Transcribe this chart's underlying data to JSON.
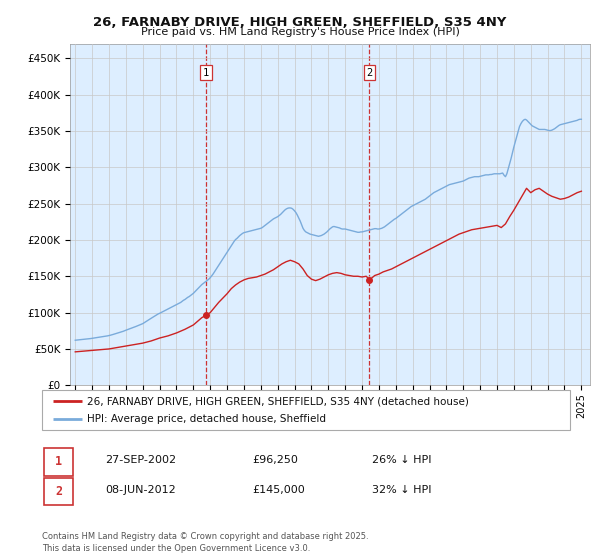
{
  "title": "26, FARNABY DRIVE, HIGH GREEN, SHEFFIELD, S35 4NY",
  "subtitle": "Price paid vs. HM Land Registry's House Price Index (HPI)",
  "ytick_values": [
    0,
    50000,
    100000,
    150000,
    200000,
    250000,
    300000,
    350000,
    400000,
    450000
  ],
  "ylim": [
    0,
    470000
  ],
  "xlim_start": 1994.7,
  "xlim_end": 2025.5,
  "hpi_color": "#7aabdb",
  "property_color": "#cc2222",
  "dashed_line_color": "#cc3333",
  "background_color": "#ddeeff",
  "legend_label_property": "26, FARNABY DRIVE, HIGH GREEN, SHEFFIELD, S35 4NY (detached house)",
  "legend_label_hpi": "HPI: Average price, detached house, Sheffield",
  "transaction1_date": "27-SEP-2002",
  "transaction1_price": "£96,250",
  "transaction1_hpi_diff": "26% ↓ HPI",
  "transaction1_x": 2002.74,
  "transaction2_date": "08-JUN-2012",
  "transaction2_price": "£145,000",
  "transaction2_hpi_diff": "32% ↓ HPI",
  "transaction2_x": 2012.44,
  "footer_text": "Contains HM Land Registry data © Crown copyright and database right 2025.\nThis data is licensed under the Open Government Licence v3.0.",
  "hpi_data_x": [
    1995.0,
    1995.083,
    1995.167,
    1995.25,
    1995.333,
    1995.417,
    1995.5,
    1995.583,
    1995.667,
    1995.75,
    1995.833,
    1995.917,
    1996.0,
    1996.083,
    1996.167,
    1996.25,
    1996.333,
    1996.417,
    1996.5,
    1996.583,
    1996.667,
    1996.75,
    1996.833,
    1996.917,
    1997.0,
    1997.083,
    1997.167,
    1997.25,
    1997.333,
    1997.417,
    1997.5,
    1997.583,
    1997.667,
    1997.75,
    1997.833,
    1997.917,
    1998.0,
    1998.083,
    1998.167,
    1998.25,
    1998.333,
    1998.417,
    1998.5,
    1998.583,
    1998.667,
    1998.75,
    1998.833,
    1998.917,
    1999.0,
    1999.083,
    1999.167,
    1999.25,
    1999.333,
    1999.417,
    1999.5,
    1999.583,
    1999.667,
    1999.75,
    1999.833,
    1999.917,
    2000.0,
    2000.083,
    2000.167,
    2000.25,
    2000.333,
    2000.417,
    2000.5,
    2000.583,
    2000.667,
    2000.75,
    2000.833,
    2000.917,
    2001.0,
    2001.083,
    2001.167,
    2001.25,
    2001.333,
    2001.417,
    2001.5,
    2001.583,
    2001.667,
    2001.75,
    2001.833,
    2001.917,
    2002.0,
    2002.083,
    2002.167,
    2002.25,
    2002.333,
    2002.417,
    2002.5,
    2002.583,
    2002.667,
    2002.75,
    2002.833,
    2002.917,
    2003.0,
    2003.083,
    2003.167,
    2003.25,
    2003.333,
    2003.417,
    2003.5,
    2003.583,
    2003.667,
    2003.75,
    2003.833,
    2003.917,
    2004.0,
    2004.083,
    2004.167,
    2004.25,
    2004.333,
    2004.417,
    2004.5,
    2004.583,
    2004.667,
    2004.75,
    2004.833,
    2004.917,
    2005.0,
    2005.083,
    2005.167,
    2005.25,
    2005.333,
    2005.417,
    2005.5,
    2005.583,
    2005.667,
    2005.75,
    2005.833,
    2005.917,
    2006.0,
    2006.083,
    2006.167,
    2006.25,
    2006.333,
    2006.417,
    2006.5,
    2006.583,
    2006.667,
    2006.75,
    2006.833,
    2006.917,
    2007.0,
    2007.083,
    2007.167,
    2007.25,
    2007.333,
    2007.417,
    2007.5,
    2007.583,
    2007.667,
    2007.75,
    2007.833,
    2007.917,
    2008.0,
    2008.083,
    2008.167,
    2008.25,
    2008.333,
    2008.417,
    2008.5,
    2008.583,
    2008.667,
    2008.75,
    2008.833,
    2008.917,
    2009.0,
    2009.083,
    2009.167,
    2009.25,
    2009.333,
    2009.417,
    2009.5,
    2009.583,
    2009.667,
    2009.75,
    2009.833,
    2009.917,
    2010.0,
    2010.083,
    2010.167,
    2010.25,
    2010.333,
    2010.417,
    2010.5,
    2010.583,
    2010.667,
    2010.75,
    2010.833,
    2010.917,
    2011.0,
    2011.083,
    2011.167,
    2011.25,
    2011.333,
    2011.417,
    2011.5,
    2011.583,
    2011.667,
    2011.75,
    2011.833,
    2011.917,
    2012.0,
    2012.083,
    2012.167,
    2012.25,
    2012.333,
    2012.417,
    2012.5,
    2012.583,
    2012.667,
    2012.75,
    2012.833,
    2012.917,
    2013.0,
    2013.083,
    2013.167,
    2013.25,
    2013.333,
    2013.417,
    2013.5,
    2013.583,
    2013.667,
    2013.75,
    2013.833,
    2013.917,
    2014.0,
    2014.083,
    2014.167,
    2014.25,
    2014.333,
    2014.417,
    2014.5,
    2014.583,
    2014.667,
    2014.75,
    2014.833,
    2014.917,
    2015.0,
    2015.083,
    2015.167,
    2015.25,
    2015.333,
    2015.417,
    2015.5,
    2015.583,
    2015.667,
    2015.75,
    2015.833,
    2015.917,
    2016.0,
    2016.083,
    2016.167,
    2016.25,
    2016.333,
    2016.417,
    2016.5,
    2016.583,
    2016.667,
    2016.75,
    2016.833,
    2016.917,
    2017.0,
    2017.083,
    2017.167,
    2017.25,
    2017.333,
    2017.417,
    2017.5,
    2017.583,
    2017.667,
    2017.75,
    2017.833,
    2017.917,
    2018.0,
    2018.083,
    2018.167,
    2018.25,
    2018.333,
    2018.417,
    2018.5,
    2018.583,
    2018.667,
    2018.75,
    2018.833,
    2018.917,
    2019.0,
    2019.083,
    2019.167,
    2019.25,
    2019.333,
    2019.417,
    2019.5,
    2019.583,
    2019.667,
    2019.75,
    2019.833,
    2019.917,
    2020.0,
    2020.083,
    2020.167,
    2020.25,
    2020.333,
    2020.417,
    2020.5,
    2020.583,
    2020.667,
    2020.75,
    2020.833,
    2020.917,
    2021.0,
    2021.083,
    2021.167,
    2021.25,
    2021.333,
    2021.417,
    2021.5,
    2021.583,
    2021.667,
    2021.75,
    2021.833,
    2021.917,
    2022.0,
    2022.083,
    2022.167,
    2022.25,
    2022.333,
    2022.417,
    2022.5,
    2022.583,
    2022.667,
    2022.75,
    2022.833,
    2022.917,
    2023.0,
    2023.083,
    2023.167,
    2023.25,
    2023.333,
    2023.417,
    2023.5,
    2023.583,
    2023.667,
    2023.75,
    2023.833,
    2023.917,
    2024.0,
    2024.083,
    2024.167,
    2024.25,
    2024.333,
    2024.417,
    2024.5,
    2024.583,
    2024.667,
    2024.75,
    2024.833,
    2024.917,
    2025.0
  ],
  "hpi_data_y": [
    62000,
    62200,
    62400,
    62600,
    62800,
    63000,
    63200,
    63400,
    63600,
    63800,
    64000,
    64300,
    64600,
    64900,
    65200,
    65500,
    65800,
    66100,
    66400,
    66700,
    67000,
    67400,
    67700,
    68000,
    68400,
    68900,
    69400,
    70000,
    70600,
    71200,
    71800,
    72400,
    73000,
    73600,
    74200,
    75000,
    75800,
    76500,
    77200,
    77900,
    78600,
    79300,
    80000,
    80800,
    81600,
    82400,
    83200,
    84000,
    84800,
    86000,
    87200,
    88500,
    89800,
    91000,
    92200,
    93400,
    94600,
    95800,
    97000,
    98200,
    99000,
    100000,
    101000,
    102000,
    103000,
    104000,
    105000,
    106000,
    107000,
    108000,
    109000,
    110000,
    111000,
    112000,
    113000,
    114000,
    115500,
    117000,
    118000,
    119500,
    121000,
    122000,
    123500,
    125000,
    126500,
    128500,
    130500,
    132500,
    134500,
    136500,
    138500,
    140000,
    141500,
    143000,
    144500,
    146000,
    148000,
    150500,
    153000,
    156000,
    159000,
    162000,
    165000,
    168000,
    171000,
    174000,
    177000,
    180000,
    183000,
    186000,
    189000,
    192000,
    195000,
    198000,
    200500,
    202000,
    204000,
    206000,
    207500,
    209000,
    210000,
    210500,
    211000,
    211500,
    212000,
    212500,
    213000,
    213500,
    214000,
    214500,
    215000,
    215500,
    216000,
    217000,
    218500,
    220000,
    221500,
    223000,
    224500,
    226000,
    227500,
    229000,
    230000,
    231000,
    232000,
    233500,
    235000,
    237000,
    239000,
    241000,
    242500,
    243500,
    244000,
    244000,
    243500,
    242000,
    240000,
    237500,
    234000,
    230000,
    226000,
    221000,
    216000,
    213000,
    211000,
    210000,
    209000,
    208000,
    207500,
    207000,
    206500,
    206000,
    205500,
    205000,
    205500,
    206000,
    207000,
    208000,
    209500,
    211000,
    213000,
    215000,
    216500,
    218000,
    218500,
    218000,
    217500,
    217000,
    216500,
    215500,
    215000,
    215000,
    215000,
    214500,
    214000,
    213500,
    213000,
    212500,
    212000,
    211500,
    211000,
    210500,
    210500,
    211000,
    211000,
    211500,
    212000,
    212500,
    213000,
    213500,
    214000,
    214500,
    215000,
    215500,
    215500,
    215000,
    215000,
    215500,
    216000,
    217000,
    218000,
    219500,
    221000,
    222500,
    224000,
    225500,
    227000,
    228500,
    229500,
    231000,
    232500,
    234000,
    235500,
    237000,
    238500,
    240000,
    241500,
    243000,
    244500,
    246000,
    247000,
    248000,
    249000,
    250000,
    251000,
    252000,
    253000,
    254000,
    255000,
    256000,
    257500,
    259000,
    260500,
    262000,
    263500,
    265000,
    266000,
    267000,
    268000,
    269000,
    270000,
    271000,
    272000,
    273000,
    274000,
    275000,
    276000,
    276500,
    277000,
    277500,
    278000,
    278500,
    279000,
    279500,
    280000,
    280500,
    281000,
    282000,
    283000,
    284000,
    285000,
    285500,
    286000,
    286500,
    287000,
    287000,
    287000,
    287000,
    287500,
    288000,
    288500,
    289000,
    289500,
    289500,
    289500,
    290000,
    290000,
    290500,
    291000,
    291000,
    291000,
    291000,
    291000,
    291500,
    292000,
    289000,
    287000,
    291000,
    298000,
    305000,
    312000,
    320000,
    328000,
    335000,
    342000,
    349000,
    356000,
    360000,
    363000,
    365000,
    366000,
    365000,
    363000,
    361000,
    359000,
    357000,
    356000,
    355000,
    354000,
    353000,
    352000,
    352000,
    352000,
    352000,
    352000,
    351500,
    351000,
    350500,
    350500,
    351000,
    352000,
    353000,
    354500,
    356000,
    357500,
    358500,
    359000,
    359500,
    360000,
    360500,
    361000,
    361500,
    362000,
    362500,
    363000,
    363500,
    364000,
    364500,
    365500,
    366000,
    366000
  ],
  "prop_data_x": [
    1995.0,
    2002.74,
    2012.44
  ],
  "prop_data_y": [
    46000,
    96250,
    145000
  ],
  "prop_curve_x": [
    1995.0,
    1995.25,
    1995.5,
    1995.75,
    1996.0,
    1996.25,
    1996.5,
    1996.75,
    1997.0,
    1997.25,
    1997.5,
    1997.75,
    1998.0,
    1998.25,
    1998.5,
    1998.75,
    1999.0,
    1999.25,
    1999.5,
    1999.75,
    2000.0,
    2000.25,
    2000.5,
    2000.75,
    2001.0,
    2001.25,
    2001.5,
    2001.75,
    2002.0,
    2002.25,
    2002.5,
    2002.74,
    2003.0,
    2003.25,
    2003.5,
    2003.75,
    2004.0,
    2004.25,
    2004.5,
    2004.75,
    2005.0,
    2005.25,
    2005.5,
    2005.75,
    2006.0,
    2006.25,
    2006.5,
    2006.75,
    2007.0,
    2007.25,
    2007.5,
    2007.75,
    2008.0,
    2008.25,
    2008.5,
    2008.75,
    2009.0,
    2009.25,
    2009.5,
    2009.75,
    2010.0,
    2010.25,
    2010.5,
    2010.75,
    2011.0,
    2011.25,
    2011.5,
    2011.75,
    2012.0,
    2012.25,
    2012.44,
    2012.75,
    2013.0,
    2013.25,
    2013.5,
    2013.75,
    2014.0,
    2014.25,
    2014.5,
    2014.75,
    2015.0,
    2015.25,
    2015.5,
    2015.75,
    2016.0,
    2016.25,
    2016.5,
    2016.75,
    2017.0,
    2017.25,
    2017.5,
    2017.75,
    2018.0,
    2018.25,
    2018.5,
    2018.75,
    2019.0,
    2019.25,
    2019.5,
    2019.75,
    2020.0,
    2020.25,
    2020.5,
    2020.75,
    2021.0,
    2021.25,
    2021.5,
    2021.75,
    2022.0,
    2022.25,
    2022.5,
    2022.75,
    2023.0,
    2023.25,
    2023.5,
    2023.75,
    2024.0,
    2024.25,
    2024.5,
    2024.75,
    2025.0
  ],
  "prop_curve_y": [
    46000,
    46500,
    47000,
    47500,
    48000,
    48500,
    49000,
    49500,
    50000,
    51000,
    52000,
    53000,
    54000,
    55000,
    56000,
    57000,
    58000,
    59500,
    61000,
    63000,
    65000,
    66500,
    68000,
    70000,
    72000,
    74500,
    77000,
    80000,
    83000,
    88000,
    93000,
    96250,
    100000,
    107000,
    114000,
    120000,
    126000,
    133000,
    138000,
    142000,
    145000,
    147000,
    148000,
    149000,
    151000,
    153000,
    156000,
    159000,
    163000,
    167000,
    170000,
    172000,
    170000,
    167000,
    160000,
    151000,
    146000,
    144000,
    146000,
    149000,
    152000,
    154000,
    155000,
    154000,
    152000,
    151000,
    150000,
    150000,
    149000,
    150000,
    145000,
    151000,
    153000,
    156000,
    158000,
    160000,
    163000,
    166000,
    169000,
    172000,
    175000,
    178000,
    181000,
    184000,
    187000,
    190000,
    193000,
    196000,
    199000,
    202000,
    205000,
    208000,
    210000,
    212000,
    214000,
    215000,
    216000,
    217000,
    218000,
    219000,
    220000,
    217000,
    222000,
    232000,
    241000,
    251000,
    261000,
    271000,
    265000,
    269000,
    271000,
    267000,
    263000,
    260000,
    258000,
    256000,
    257000,
    259000,
    262000,
    265000,
    267000
  ]
}
